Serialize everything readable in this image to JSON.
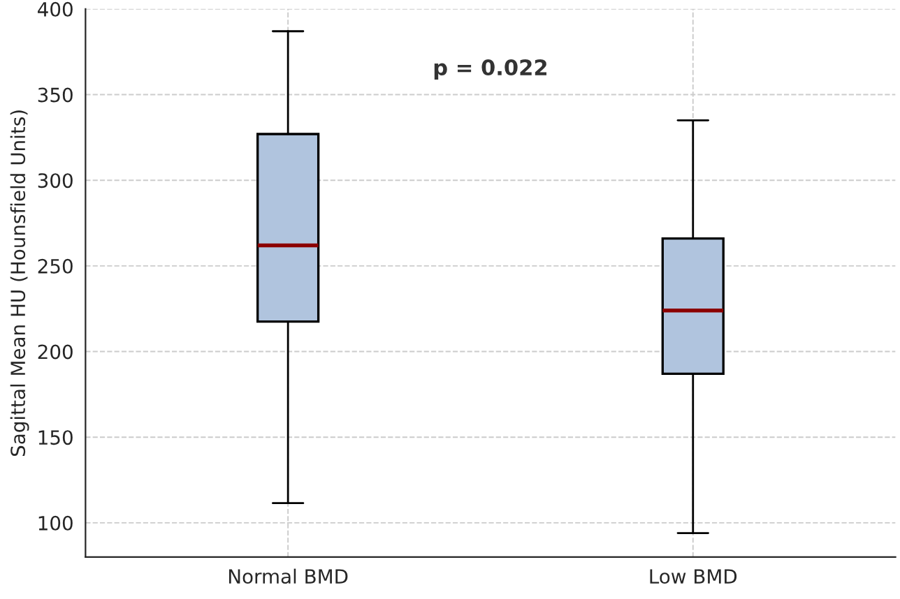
{
  "chart_data": {
    "type": "box",
    "ylabel": "Sagittal Mean HU (Hounsfield Units)",
    "categories": [
      "Normal BMD",
      "Low BMD"
    ],
    "boxes": [
      {
        "low": 111.5,
        "q1": 217.5,
        "median": 262,
        "q3": 327,
        "high": 387
      },
      {
        "low": 94,
        "q1": 187,
        "median": 224,
        "q3": 266,
        "high": 335
      }
    ],
    "color": "#b0c4de",
    "ylim": [
      80,
      400
    ],
    "yticks": [
      100,
      150,
      200,
      250,
      300,
      350,
      400
    ],
    "grid": true,
    "annotations": [
      "p = 0.022"
    ]
  }
}
